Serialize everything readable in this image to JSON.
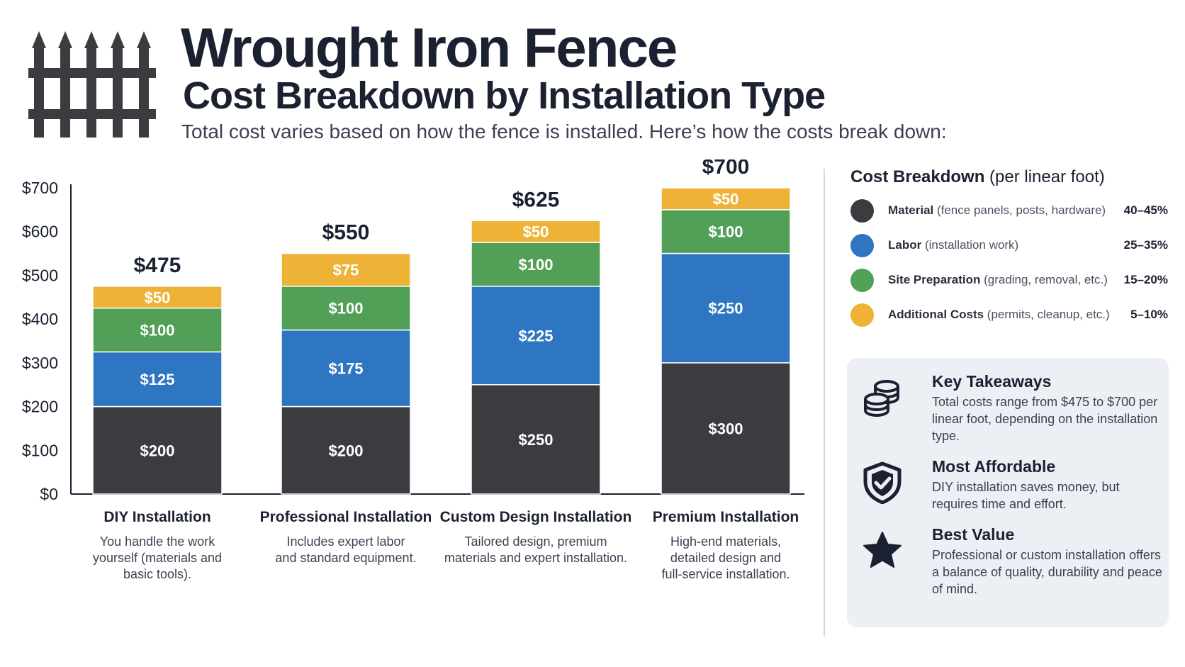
{
  "header": {
    "title": "Wrought Iron Fence",
    "subtitle": "Cost Breakdown by Installation Type",
    "intro": "Total cost varies based on how the fence is installed. Here’s how the costs break down:"
  },
  "colors": {
    "material": "#3a3c40",
    "labor": "#2f76c2",
    "site_prep": "#52a058",
    "additional": "#eeb336",
    "axis": "#1b2130"
  },
  "chart_data": {
    "type": "bar",
    "stacked": true,
    "categories": [
      "DIY Installation",
      "Professional Installation",
      "Custom Design Installation",
      "Premium Installation"
    ],
    "category_descriptions": [
      [
        "You handle the work",
        "yourself (materials and",
        "basic tools)."
      ],
      [
        "Includes expert labor",
        "and standard equipment."
      ],
      [
        "Tailored design, premium",
        "materials and expert installation."
      ],
      [
        "High-end materials,",
        "detailed design and",
        "full-service installation."
      ]
    ],
    "series": [
      {
        "values": [
          200,
          200,
          250,
          300
        ],
        "value_labels": [
          "$200",
          "$200",
          "$250",
          "$300"
        ]
      },
      {
        "values": [
          125,
          175,
          225,
          250
        ],
        "value_labels": [
          "$125",
          "$175",
          "$225",
          "$250"
        ]
      },
      {
        "values": [
          100,
          100,
          100,
          100
        ],
        "value_labels": [
          "$100",
          "$100",
          "$100",
          "$100"
        ]
      },
      {
        "values": [
          50,
          75,
          50,
          50
        ],
        "value_labels": [
          "$50",
          "$75",
          "$50",
          "$50"
        ]
      }
    ],
    "totals": [
      475,
      550,
      625,
      700
    ],
    "total_labels": [
      "$475",
      "$550",
      "$625",
      "$700"
    ],
    "ylim": [
      0,
      700
    ],
    "yticks": [
      0,
      100,
      200,
      300,
      400,
      500,
      600,
      700
    ],
    "ytick_labels": [
      "$0",
      "$100",
      "$200",
      "$300",
      "$400",
      "$500",
      "$600",
      "$700"
    ],
    "grid": false,
    "legend_position": "right"
  },
  "legend": {
    "title": "Cost Breakdown",
    "title_suffix": " (per linear foot)",
    "items": [
      {
        "name": "Material",
        "desc": " (fence panels, posts, hardware)",
        "pct": "40–45%"
      },
      {
        "name": "Labor",
        "desc": " (installation work)",
        "pct": "25–35%"
      },
      {
        "name": "Site Preparation",
        "desc": " (grading, removal, etc.)",
        "pct": "15–20%"
      },
      {
        "name": "Additional Costs",
        "desc": " (permits, cleanup, etc.)",
        "pct": "5–10%"
      }
    ]
  },
  "takeaways": [
    {
      "icon": "coins-icon",
      "title": "Key Takeaways",
      "text": "Total costs range from $475 to $700 per linear foot, depending on the installation type."
    },
    {
      "icon": "shield-check-icon",
      "title": "Most Affordable",
      "text": "DIY installation saves money, but requires time and effort."
    },
    {
      "icon": "star-icon",
      "title": "Best Value",
      "text": "Professional or custom installation offers a balance of quality, durability and peace of mind."
    }
  ]
}
